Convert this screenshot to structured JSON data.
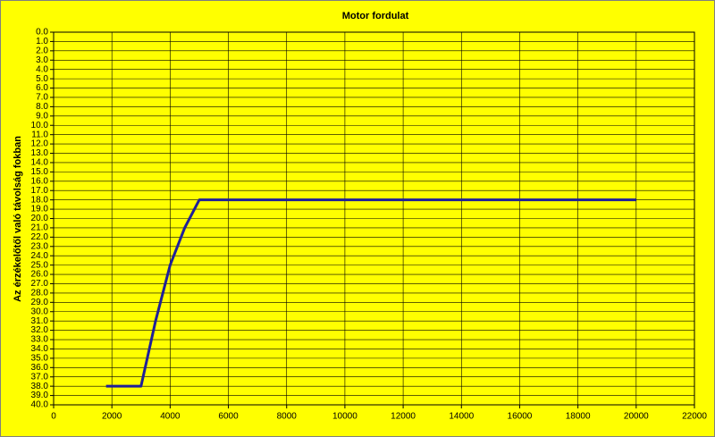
{
  "chart_data": {
    "type": "line",
    "title": "Motor fordulat",
    "y_label": "Az érzékelőtől való távolság fokban",
    "x": [
      1800,
      3000,
      3500,
      4000,
      4500,
      5000,
      20000
    ],
    "values": [
      38,
      38,
      31,
      25,
      21,
      18,
      18
    ],
    "color": "#1f1f9a",
    "xlim": [
      0,
      22000
    ],
    "xticks": [
      0,
      2000,
      4000,
      6000,
      8000,
      10000,
      12000,
      14000,
      16000,
      18000,
      20000,
      22000
    ],
    "ylim": [
      0,
      40
    ],
    "y_reversed": true,
    "yticks": [
      {
        "value": 0,
        "label": "0.0"
      },
      {
        "value": 1,
        "label": "1.0"
      },
      {
        "value": 2,
        "label": "2.0"
      },
      {
        "value": 3,
        "label": "3.0"
      },
      {
        "value": 4,
        "label": "4.0"
      },
      {
        "value": 5,
        "label": "5.0"
      },
      {
        "value": 6,
        "label": "6.0"
      },
      {
        "value": 7,
        "label": "7.0"
      },
      {
        "value": 8,
        "label": "8.0"
      },
      {
        "value": 9,
        "label": "9.0"
      },
      {
        "value": 10,
        "label": "10.0"
      },
      {
        "value": 11,
        "label": "11.0"
      },
      {
        "value": 12,
        "label": "12.0"
      },
      {
        "value": 13,
        "label": "13.0"
      },
      {
        "value": 14,
        "label": "14.0"
      },
      {
        "value": 15,
        "label": "15.0"
      },
      {
        "value": 16,
        "label": "16.0"
      },
      {
        "value": 17,
        "label": "17.0"
      },
      {
        "value": 18,
        "label": "18.0"
      },
      {
        "value": 19,
        "label": "19.0"
      },
      {
        "value": 20,
        "label": "20.0"
      },
      {
        "value": 21,
        "label": "21.0"
      },
      {
        "value": 22,
        "label": "22.0"
      },
      {
        "value": 23,
        "label": "23.0"
      },
      {
        "value": 24,
        "label": "24.0"
      },
      {
        "value": 25,
        "label": "25.0"
      },
      {
        "value": 26,
        "label": "26.0"
      },
      {
        "value": 27,
        "label": "27.0"
      },
      {
        "value": 28,
        "label": "28.0"
      },
      {
        "value": 29,
        "label": "29.0"
      },
      {
        "value": 30,
        "label": "30.0"
      },
      {
        "value": 31,
        "label": "31.0"
      },
      {
        "value": 32,
        "label": "32.0"
      },
      {
        "value": 33,
        "label": "33.0"
      },
      {
        "value": 34,
        "label": "34.0"
      },
      {
        "value": 35,
        "label": "35.0"
      },
      {
        "value": 36,
        "label": "36.0"
      },
      {
        "value": 37,
        "label": "37.0"
      },
      {
        "value": 38,
        "label": "38.0"
      },
      {
        "value": 39,
        "label": "39.0"
      },
      {
        "value": 40,
        "label": "40.0"
      }
    ],
    "grid": true,
    "background": "#ffff00"
  }
}
